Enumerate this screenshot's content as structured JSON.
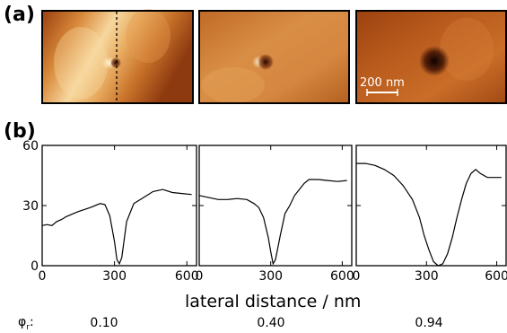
{
  "panel_labels": {
    "a": "(a)",
    "b": "(b)"
  },
  "afm_images": [
    {
      "panel": "image-1",
      "scheme": "light",
      "line_cut": true
    },
    {
      "panel": "image-2",
      "scheme": "medium",
      "line_cut": false
    },
    {
      "panel": "image-3",
      "scheme": "dark",
      "line_cut": false
    }
  ],
  "scale_bar": {
    "label": "200 nm"
  },
  "colors": {
    "frame": "#000000",
    "afm_dark": "#1a0500",
    "afm_mid": "#c0651e",
    "afm_light": "#f5d49a",
    "scale_bar": "#ffffff"
  },
  "chart_data": [
    {
      "type": "line",
      "xlabel": "lateral distance / nm",
      "ylabel": "",
      "xlim": [
        0,
        640
      ],
      "ylim": [
        0,
        60
      ],
      "xticks": [
        0,
        300,
        600
      ],
      "yticks": [
        0,
        30,
        60
      ],
      "phi_r": "0.10",
      "series": [
        {
          "x": [
            0,
            20,
            40,
            60,
            80,
            100,
            150,
            200,
            240,
            260,
            280,
            300,
            310,
            320,
            330,
            350,
            380,
            420,
            460,
            500,
            540,
            580,
            620
          ],
          "y": [
            20,
            20.5,
            20,
            22,
            23,
            24.5,
            27,
            29,
            31,
            30.5,
            25,
            12,
            3,
            1,
            4,
            22,
            31,
            34,
            37,
            38,
            36.5,
            36,
            35.5
          ]
        }
      ]
    },
    {
      "type": "line",
      "xlabel": "lateral distance / nm",
      "ylabel": "",
      "xlim": [
        0,
        640
      ],
      "ylim": [
        0,
        60
      ],
      "xticks": [
        0,
        300,
        600
      ],
      "yticks": [
        0,
        30,
        60
      ],
      "phi_r": "0.40",
      "series": [
        {
          "x": [
            0,
            40,
            80,
            120,
            160,
            200,
            230,
            250,
            270,
            290,
            300,
            310,
            320,
            340,
            360,
            380,
            400,
            420,
            440,
            460,
            500,
            540,
            580,
            620
          ],
          "y": [
            35,
            34,
            33,
            33,
            33.5,
            33,
            31,
            29,
            24,
            14,
            7,
            1,
            3,
            15,
            26,
            30,
            35,
            38,
            41,
            43,
            43,
            42.5,
            42,
            42.5
          ]
        }
      ]
    },
    {
      "type": "line",
      "xlabel": "lateral distance / nm",
      "ylabel": "",
      "xlim": [
        0,
        640
      ],
      "ylim": [
        0,
        60
      ],
      "xticks": [
        0,
        300,
        600
      ],
      "yticks": [
        0,
        30,
        60
      ],
      "phi_r": "0.94",
      "series": [
        {
          "x": [
            0,
            40,
            80,
            120,
            160,
            200,
            240,
            270,
            290,
            310,
            330,
            350,
            370,
            390,
            410,
            430,
            450,
            470,
            490,
            510,
            530,
            560,
            600,
            620
          ],
          "y": [
            51,
            51,
            50,
            48,
            45,
            40,
            33,
            24,
            15,
            8,
            2,
            0,
            1,
            6,
            14,
            24,
            33,
            41,
            46,
            48,
            46,
            44,
            44,
            44
          ]
        }
      ]
    }
  ],
  "phi_label": {
    "symbol": "φ",
    "subscript": "r",
    "suffix": ":"
  }
}
